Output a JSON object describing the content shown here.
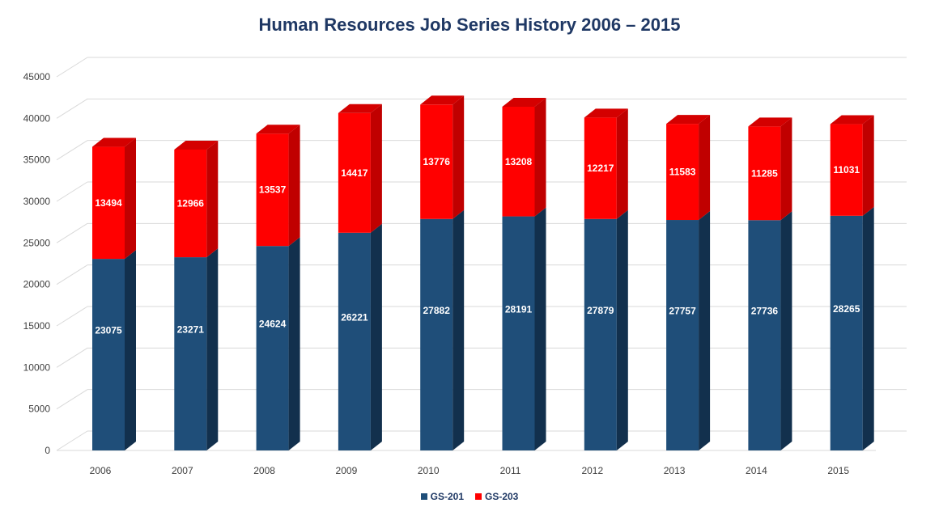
{
  "chart_data": {
    "type": "bar",
    "stacked": true,
    "three_d": true,
    "title": "Human Resources Job Series History 2006 – 2015",
    "xlabel": "",
    "ylabel": "",
    "ylim": [
      0,
      45000
    ],
    "ytick_step": 5000,
    "yticks": [
      "0",
      "5000",
      "10000",
      "15000",
      "20000",
      "25000",
      "30000",
      "35000",
      "40000",
      "45000"
    ],
    "grid": true,
    "legend_position": "bottom",
    "categories": [
      "2006",
      "2007",
      "2008",
      "2009",
      "2010",
      "2011",
      "2012",
      "2013",
      "2014",
      "2015"
    ],
    "series": [
      {
        "name": "GS-201",
        "color": "#1f4e79",
        "values": [
          23075,
          23271,
          24624,
          26221,
          27882,
          28191,
          27879,
          27757,
          27736,
          28265
        ]
      },
      {
        "name": "GS-203",
        "color": "#ff0000",
        "values": [
          13494,
          12966,
          13537,
          14417,
          13776,
          13208,
          12217,
          11583,
          11285,
          11031
        ]
      }
    ]
  }
}
